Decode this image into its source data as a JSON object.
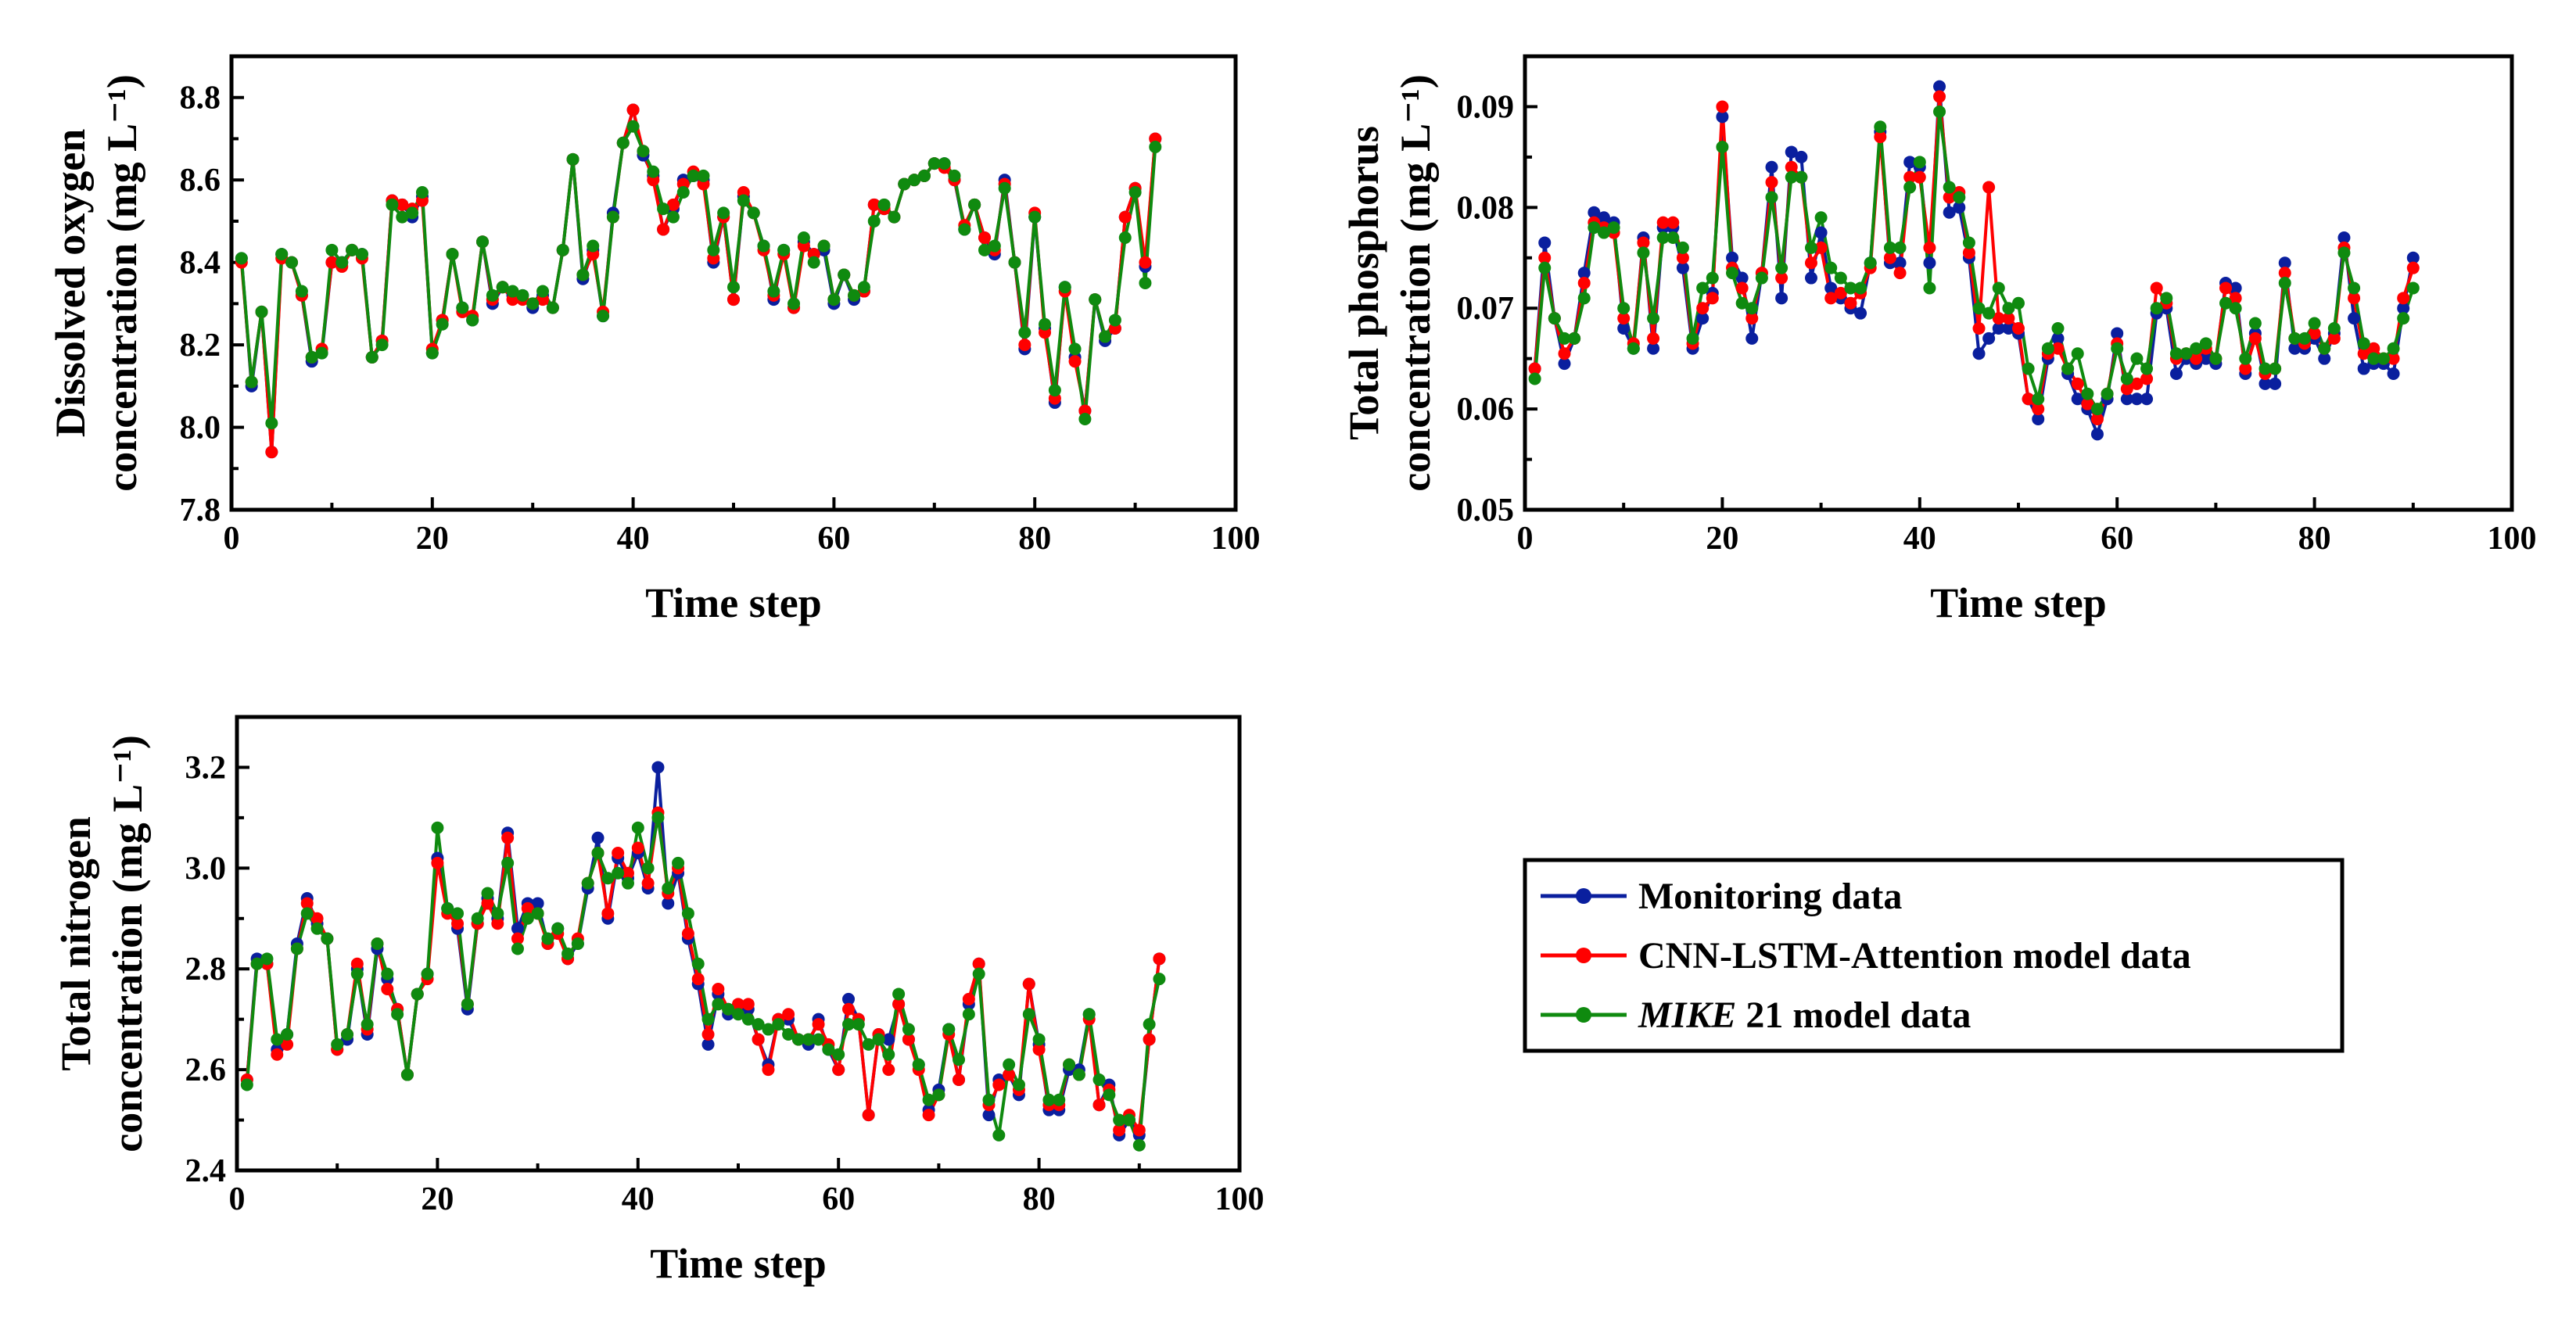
{
  "legend": {
    "entries": [
      {
        "name": "Monitoring data",
        "color": "#0a1f9e"
      },
      {
        "name": "CNN-LSTM-Attention model data",
        "color": "#ff0000"
      },
      {
        "name": "MIKE 21 model data",
        "color": "#0f8a0f",
        "italic_prefix": "MIKE",
        "rest": " 21 model data"
      }
    ]
  },
  "chart_data": [
    {
      "type": "line",
      "title": "",
      "xlabel": "Time step",
      "ylabel_line1": "Dissolved oxygen",
      "ylabel_line2": "concentration (mg L⁻¹)",
      "xlim": [
        0,
        100
      ],
      "ylim": [
        7.8,
        8.9
      ],
      "xticks": [
        0,
        20,
        40,
        60,
        80,
        100
      ],
      "yticks": [
        7.8,
        8.0,
        8.2,
        8.4,
        8.6,
        8.8
      ],
      "ytick_labels": [
        "7.8",
        "8.0",
        "8.2",
        "8.4",
        "8.6",
        "8.8"
      ],
      "series": [
        {
          "name": "Monitoring data",
          "values": [
            8.41,
            8.1,
            8.28,
            7.94,
            8.42,
            8.4,
            8.32,
            8.16,
            8.18,
            8.4,
            8.4,
            8.43,
            8.42,
            8.17,
            8.21,
            8.55,
            8.54,
            8.51,
            8.56,
            8.18,
            8.26,
            8.42,
            8.29,
            8.26,
            8.45,
            8.3,
            8.34,
            8.32,
            8.32,
            8.29,
            8.32,
            8.29,
            8.43,
            8.65,
            8.36,
            8.43,
            8.27,
            8.52,
            8.69,
            8.77,
            8.66,
            8.61,
            8.48,
            8.53,
            8.6,
            8.61,
            8.6,
            8.4,
            8.51,
            8.31,
            8.56,
            8.52,
            8.44,
            8.31,
            8.43,
            8.29,
            8.45,
            8.42,
            8.43,
            8.3,
            8.37,
            8.31,
            8.33,
            8.54,
            8.53,
            8.51,
            8.59,
            8.6,
            8.61,
            8.64,
            8.64,
            8.6,
            8.48,
            8.54,
            8.46,
            8.42,
            8.6,
            8.4,
            8.19,
            8.51,
            8.24,
            8.06,
            8.34,
            8.17,
            8.04,
            8.31,
            8.21,
            8.24,
            8.51,
            8.58,
            8.39,
            8.7
          ]
        },
        {
          "name": "CNN-LSTM-Attention model data",
          "values": [
            8.4,
            8.11,
            8.28,
            7.94,
            8.41,
            8.4,
            8.32,
            8.17,
            8.19,
            8.4,
            8.39,
            8.43,
            8.41,
            8.17,
            8.21,
            8.55,
            8.54,
            8.53,
            8.55,
            8.19,
            8.26,
            8.42,
            8.28,
            8.27,
            8.45,
            8.31,
            8.34,
            8.31,
            8.31,
            8.3,
            8.31,
            8.29,
            8.43,
            8.65,
            8.37,
            8.42,
            8.28,
            8.51,
            8.69,
            8.77,
            8.67,
            8.6,
            8.48,
            8.54,
            8.59,
            8.62,
            8.59,
            8.41,
            8.51,
            8.31,
            8.57,
            8.52,
            8.43,
            8.32,
            8.42,
            8.29,
            8.44,
            8.42,
            8.44,
            8.31,
            8.37,
            8.32,
            8.33,
            8.54,
            8.53,
            8.51,
            8.59,
            8.6,
            8.61,
            8.64,
            8.63,
            8.6,
            8.49,
            8.54,
            8.46,
            8.43,
            8.59,
            8.4,
            8.2,
            8.52,
            8.23,
            8.07,
            8.33,
            8.16,
            8.04,
            8.31,
            8.22,
            8.24,
            8.51,
            8.58,
            8.4,
            8.7
          ]
        },
        {
          "name": "MIKE 21 model data",
          "values": [
            8.41,
            8.11,
            8.28,
            8.01,
            8.42,
            8.4,
            8.33,
            8.17,
            8.18,
            8.43,
            8.4,
            8.43,
            8.42,
            8.17,
            8.2,
            8.54,
            8.51,
            8.52,
            8.57,
            8.18,
            8.25,
            8.42,
            8.29,
            8.26,
            8.45,
            8.32,
            8.34,
            8.33,
            8.32,
            8.3,
            8.33,
            8.29,
            8.43,
            8.65,
            8.37,
            8.44,
            8.27,
            8.51,
            8.69,
            8.73,
            8.67,
            8.62,
            8.53,
            8.51,
            8.57,
            8.61,
            8.61,
            8.43,
            8.52,
            8.34,
            8.55,
            8.52,
            8.44,
            8.33,
            8.43,
            8.3,
            8.46,
            8.4,
            8.44,
            8.31,
            8.37,
            8.32,
            8.34,
            8.5,
            8.54,
            8.51,
            8.59,
            8.6,
            8.61,
            8.64,
            8.64,
            8.61,
            8.48,
            8.54,
            8.43,
            8.44,
            8.58,
            8.4,
            8.23,
            8.51,
            8.25,
            8.09,
            8.34,
            8.19,
            8.02,
            8.31,
            8.22,
            8.26,
            8.46,
            8.57,
            8.35,
            8.68
          ]
        }
      ]
    },
    {
      "type": "line",
      "title": "",
      "xlabel": "Time step",
      "ylabel_line1": "Total phosphorus",
      "ylabel_line2": "concentration (mg L⁻¹)",
      "xlim": [
        0,
        100
      ],
      "ylim": [
        0.05,
        0.095
      ],
      "xticks": [
        0,
        20,
        40,
        60,
        80,
        100
      ],
      "yticks": [
        0.05,
        0.06,
        0.07,
        0.08,
        0.09
      ],
      "ytick_labels": [
        "0.05",
        "0.06",
        "0.07",
        "0.08",
        "0.09"
      ],
      "series": [
        {
          "name": "Monitoring data",
          "values": [
            0.064,
            0.0765,
            0.069,
            0.0645,
            0.067,
            0.0735,
            0.0795,
            0.079,
            0.0785,
            0.068,
            0.066,
            0.077,
            0.066,
            0.078,
            0.078,
            0.074,
            0.066,
            0.069,
            0.0715,
            0.089,
            0.075,
            0.073,
            0.067,
            0.0735,
            0.084,
            0.071,
            0.0855,
            0.085,
            0.073,
            0.0775,
            0.072,
            0.071,
            0.07,
            0.0695,
            0.0745,
            0.0875,
            0.0745,
            0.0745,
            0.0845,
            0.084,
            0.0745,
            0.092,
            0.0795,
            0.08,
            0.075,
            0.0655,
            0.067,
            0.068,
            0.068,
            0.0675,
            0.061,
            0.059,
            0.065,
            0.067,
            0.0635,
            0.061,
            0.06,
            0.0575,
            0.061,
            0.0675,
            0.061,
            0.061,
            0.061,
            0.0695,
            0.07,
            0.0635,
            0.065,
            0.0645,
            0.065,
            0.0645,
            0.0725,
            0.072,
            0.0635,
            0.0675,
            0.0625,
            0.0625,
            0.0745,
            0.066,
            0.066,
            0.067,
            0.065,
            0.0675,
            0.077,
            0.069,
            0.064,
            0.0645,
            0.0645,
            0.0635,
            0.07,
            0.075
          ]
        },
        {
          "name": "CNN-LSTM-Attention model data",
          "values": [
            0.064,
            0.075,
            0.069,
            0.0655,
            0.067,
            0.0725,
            0.0785,
            0.078,
            0.0775,
            0.069,
            0.0665,
            0.0765,
            0.067,
            0.0785,
            0.0785,
            0.075,
            0.0665,
            0.07,
            0.071,
            0.09,
            0.074,
            0.072,
            0.069,
            0.0735,
            0.0825,
            0.073,
            0.084,
            0.083,
            0.0745,
            0.076,
            0.071,
            0.0715,
            0.0705,
            0.0715,
            0.074,
            0.087,
            0.075,
            0.0735,
            0.083,
            0.083,
            0.076,
            0.091,
            0.081,
            0.0815,
            0.0755,
            0.068,
            0.082,
            0.069,
            0.069,
            0.068,
            0.061,
            0.06,
            0.0655,
            0.066,
            0.064,
            0.0625,
            0.0605,
            0.059,
            0.0615,
            0.0665,
            0.062,
            0.0625,
            0.063,
            0.072,
            0.0705,
            0.065,
            0.0655,
            0.065,
            0.066,
            0.065,
            0.072,
            0.071,
            0.064,
            0.067,
            0.0635,
            0.064,
            0.0735,
            0.067,
            0.0665,
            0.0675,
            0.066,
            0.067,
            0.076,
            0.071,
            0.0655,
            0.066,
            0.065,
            0.065,
            0.071,
            0.074
          ]
        },
        {
          "name": "MIKE 21 model data",
          "values": [
            0.063,
            0.074,
            0.069,
            0.067,
            0.067,
            0.071,
            0.078,
            0.0775,
            0.078,
            0.07,
            0.066,
            0.0755,
            0.069,
            0.077,
            0.077,
            0.076,
            0.067,
            0.072,
            0.073,
            0.086,
            0.0735,
            0.0705,
            0.07,
            0.073,
            0.081,
            0.074,
            0.083,
            0.083,
            0.076,
            0.079,
            0.074,
            0.073,
            0.072,
            0.072,
            0.0745,
            0.088,
            0.076,
            0.076,
            0.082,
            0.0845,
            0.072,
            0.0895,
            0.082,
            0.081,
            0.0765,
            0.07,
            0.0695,
            0.072,
            0.07,
            0.0705,
            0.064,
            0.061,
            0.066,
            0.068,
            0.064,
            0.0655,
            0.0615,
            0.06,
            0.0615,
            0.066,
            0.063,
            0.065,
            0.064,
            0.07,
            0.071,
            0.0655,
            0.0655,
            0.066,
            0.0665,
            0.065,
            0.0705,
            0.07,
            0.065,
            0.0685,
            0.064,
            0.064,
            0.0725,
            0.067,
            0.067,
            0.0685,
            0.066,
            0.068,
            0.0755,
            0.072,
            0.0665,
            0.065,
            0.065,
            0.066,
            0.069,
            0.072
          ]
        }
      ]
    },
    {
      "type": "line",
      "title": "",
      "xlabel": "Time step",
      "ylabel_line1": "Total nitrogen",
      "ylabel_line2": "concentration (mg L⁻¹)",
      "xlim": [
        0,
        100
      ],
      "ylim": [
        2.4,
        3.3
      ],
      "xticks": [
        0,
        20,
        40,
        60,
        80,
        100
      ],
      "yticks": [
        2.4,
        2.6,
        2.8,
        3.0,
        3.2
      ],
      "ytick_labels": [
        "2.4",
        "2.6",
        "2.8",
        "3.0",
        "3.2"
      ],
      "series": [
        {
          "name": "Monitoring data",
          "values": [
            2.58,
            2.82,
            2.81,
            2.64,
            2.67,
            2.85,
            2.94,
            2.89,
            2.86,
            2.64,
            2.66,
            2.8,
            2.67,
            2.84,
            2.78,
            2.72,
            2.59,
            2.75,
            2.79,
            3.02,
            2.92,
            2.88,
            2.72,
            2.89,
            2.94,
            2.9,
            3.07,
            2.88,
            2.93,
            2.93,
            2.85,
            2.88,
            2.82,
            2.85,
            2.96,
            3.06,
            2.9,
            3.02,
            2.98,
            3.03,
            2.96,
            3.2,
            2.93,
            2.99,
            2.86,
            2.77,
            2.65,
            2.75,
            2.71,
            2.72,
            2.72,
            2.66,
            2.61,
            2.7,
            2.7,
            2.66,
            2.65,
            2.7,
            2.64,
            2.6,
            2.74,
            2.7,
            2.51,
            2.67,
            2.66,
            2.73,
            2.66,
            2.61,
            2.52,
            2.56,
            2.68,
            2.58,
            2.73,
            2.81,
            2.51,
            2.58,
            2.59,
            2.55,
            2.77,
            2.65,
            2.52,
            2.52,
            2.6,
            2.6,
            2.71,
            2.53,
            2.57,
            2.47,
            2.5,
            2.47,
            2.66,
            2.82
          ]
        },
        {
          "name": "CNN-LSTM-Attention model data",
          "values": [
            2.58,
            2.81,
            2.81,
            2.63,
            2.65,
            2.84,
            2.93,
            2.9,
            2.86,
            2.64,
            2.67,
            2.81,
            2.68,
            2.85,
            2.76,
            2.72,
            2.59,
            2.75,
            2.78,
            3.01,
            2.91,
            2.89,
            2.73,
            2.89,
            2.93,
            2.89,
            3.06,
            2.86,
            2.92,
            2.91,
            2.85,
            2.87,
            2.82,
            2.86,
            2.97,
            3.03,
            2.91,
            3.03,
            2.99,
            3.04,
            2.97,
            3.11,
            2.95,
            3.0,
            2.87,
            2.78,
            2.67,
            2.76,
            2.72,
            2.73,
            2.73,
            2.66,
            2.6,
            2.7,
            2.71,
            2.66,
            2.66,
            2.69,
            2.65,
            2.6,
            2.72,
            2.7,
            2.51,
            2.67,
            2.6,
            2.73,
            2.66,
            2.6,
            2.51,
            2.55,
            2.67,
            2.58,
            2.74,
            2.81,
            2.53,
            2.57,
            2.59,
            2.56,
            2.77,
            2.64,
            2.53,
            2.53,
            2.61,
            2.59,
            2.7,
            2.53,
            2.56,
            2.48,
            2.51,
            2.48,
            2.66,
            2.82
          ]
        },
        {
          "name": "MIKE 21 model data",
          "values": [
            2.57,
            2.81,
            2.82,
            2.66,
            2.67,
            2.84,
            2.91,
            2.88,
            2.86,
            2.65,
            2.67,
            2.79,
            2.69,
            2.85,
            2.79,
            2.71,
            2.59,
            2.75,
            2.79,
            3.08,
            2.92,
            2.91,
            2.73,
            2.9,
            2.95,
            2.91,
            3.01,
            2.84,
            2.9,
            2.91,
            2.86,
            2.88,
            2.83,
            2.85,
            2.97,
            3.03,
            2.98,
            2.99,
            2.97,
            3.08,
            3.0,
            3.1,
            2.96,
            3.01,
            2.91,
            2.81,
            2.7,
            2.73,
            2.72,
            2.71,
            2.7,
            2.69,
            2.68,
            2.69,
            2.67,
            2.66,
            2.66,
            2.66,
            2.64,
            2.63,
            2.69,
            2.69,
            2.65,
            2.66,
            2.63,
            2.75,
            2.68,
            2.61,
            2.54,
            2.55,
            2.68,
            2.62,
            2.71,
            2.79,
            2.54,
            2.47,
            2.61,
            2.57,
            2.71,
            2.66,
            2.54,
            2.54,
            2.61,
            2.59,
            2.71,
            2.58,
            2.55,
            2.5,
            2.5,
            2.45,
            2.69,
            2.78
          ]
        }
      ]
    }
  ]
}
